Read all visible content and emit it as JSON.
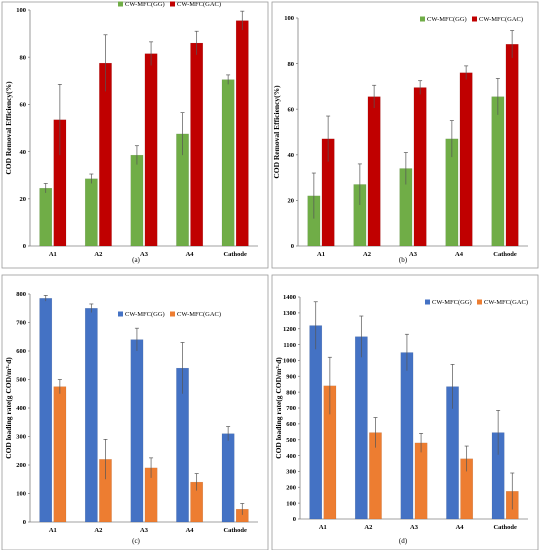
{
  "chart_data": [
    {
      "type": "bar",
      "panel_label": "(a)",
      "ylabel": "COD Removal Efficiency(%)",
      "categories": [
        "A1",
        "A2",
        "A3",
        "A4",
        "Cathode"
      ],
      "ylim": [
        0,
        100
      ],
      "yticks": [
        0,
        20,
        40,
        60,
        80,
        100
      ],
      "legend_position": "top",
      "series": [
        {
          "name": "CW-MFC(GG)",
          "color": "#70AD47",
          "values": [
            24.5,
            28.5,
            38.5,
            47.5,
            70.5
          ],
          "errors": [
            2,
            2,
            4,
            9,
            2
          ]
        },
        {
          "name": "CW-MFC(GAC)",
          "color": "#C00000",
          "values": [
            53.5,
            77.5,
            81.5,
            86,
            95.5
          ],
          "errors": [
            15,
            12,
            5,
            5,
            4
          ]
        }
      ]
    },
    {
      "type": "bar",
      "panel_label": "(b)",
      "ylabel": "COD Removal Efficiency(%)",
      "categories": [
        "A1",
        "A2",
        "A3",
        "A4",
        "Cathode"
      ],
      "ylim": [
        0,
        100
      ],
      "yticks": [
        0,
        20,
        40,
        60,
        80,
        100
      ],
      "legend_position": "top-right",
      "series": [
        {
          "name": "CW-MFC(GG)",
          "color": "#70AD47",
          "values": [
            22,
            27,
            34,
            47,
            65.5
          ],
          "errors": [
            10,
            9,
            7,
            8,
            8
          ]
        },
        {
          "name": "CW-MFC(GAC)",
          "color": "#C00000",
          "values": [
            47,
            65.5,
            69.5,
            76,
            88.5
          ],
          "errors": [
            10,
            5,
            3,
            3,
            6
          ]
        }
      ]
    },
    {
      "type": "bar",
      "panel_label": "(c)",
      "ylabel": "COD loading rate(g COD/m³·d)",
      "categories": [
        "A1",
        "A2",
        "A3",
        "A4",
        "Cathode"
      ],
      "ylim": [
        0,
        800
      ],
      "yticks": [
        0,
        100,
        200,
        300,
        400,
        500,
        600,
        700,
        800
      ],
      "legend_position": "top-right",
      "series": [
        {
          "name": "CW-MFC(GG)",
          "color": "#4472C4",
          "values": [
            785,
            750,
            640,
            540,
            310
          ],
          "errors": [
            10,
            15,
            40,
            90,
            25
          ]
        },
        {
          "name": "CW-MFC(GAC)",
          "color": "#ED7D31",
          "values": [
            475,
            220,
            190,
            140,
            45
          ],
          "errors": [
            25,
            70,
            35,
            30,
            20
          ]
        }
      ]
    },
    {
      "type": "bar",
      "panel_label": "(d)",
      "ylabel": "COD loading rate(g COD/m³·d)",
      "categories": [
        "A1",
        "A2",
        "A3",
        "A4",
        "Cathode"
      ],
      "ylim": [
        0,
        1400
      ],
      "yticks": [
        0,
        100,
        200,
        300,
        400,
        500,
        600,
        700,
        800,
        900,
        1000,
        1100,
        1200,
        1300,
        1400
      ],
      "legend_position": "top-right",
      "series": [
        {
          "name": "CW-MFC(GG)",
          "color": "#4472C4",
          "values": [
            1220,
            1150,
            1050,
            835,
            545
          ],
          "errors": [
            150,
            130,
            115,
            140,
            140
          ]
        },
        {
          "name": "CW-MFC(GAC)",
          "color": "#ED7D31",
          "values": [
            840,
            545,
            480,
            380,
            175
          ],
          "errors": [
            180,
            95,
            60,
            80,
            115
          ]
        }
      ]
    }
  ]
}
